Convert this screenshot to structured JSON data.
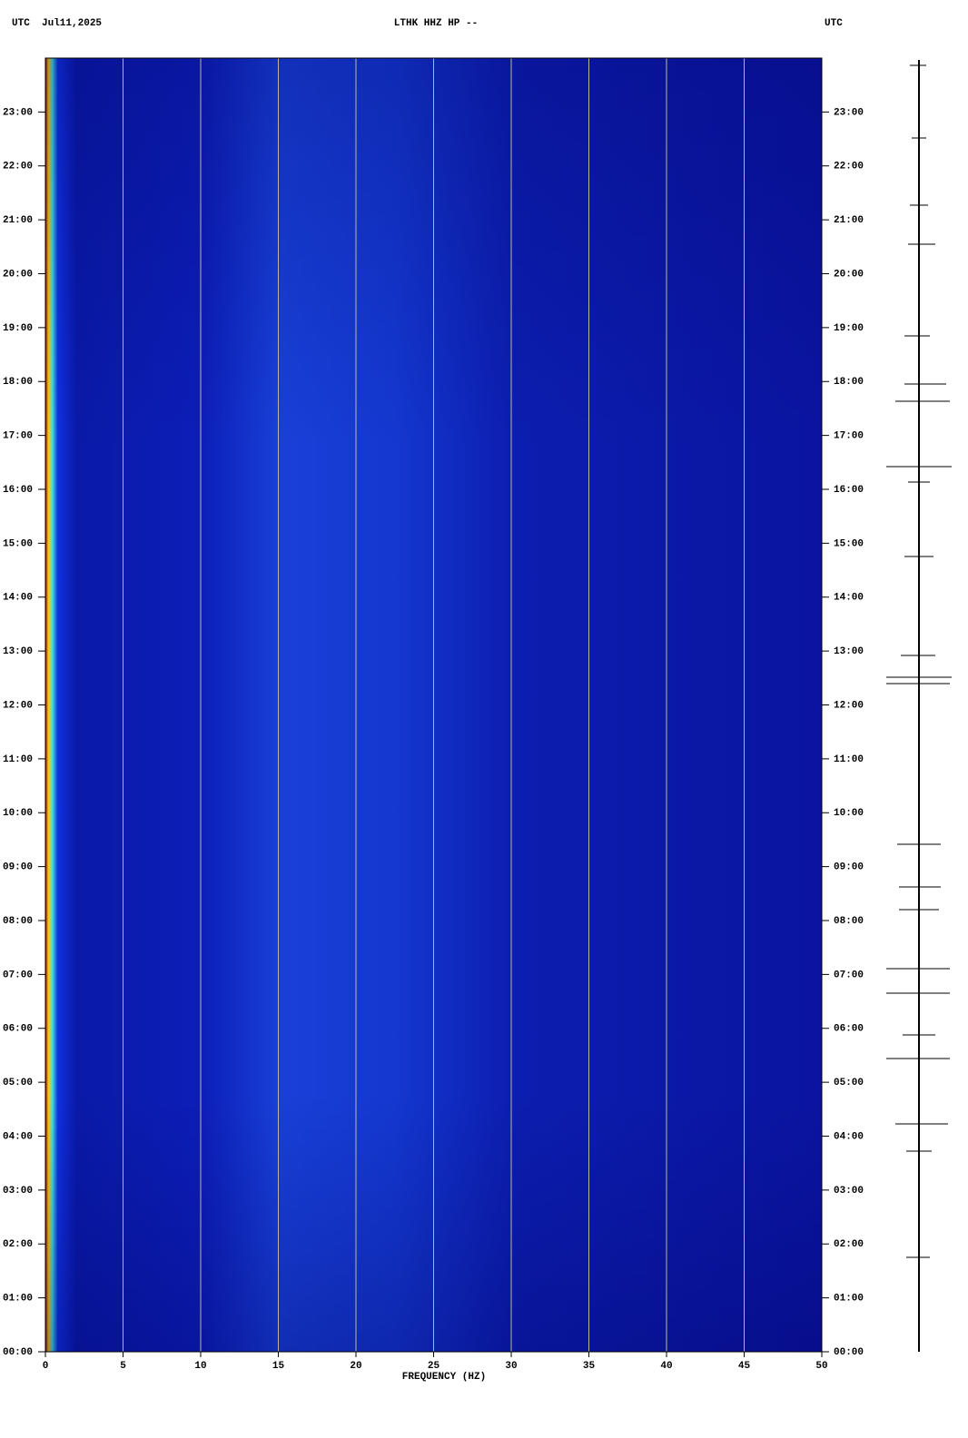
{
  "header": {
    "left": "UTC  Jul11,2025",
    "center": "LTHK HHZ HP --",
    "right": "UTC"
  },
  "chart_data": {
    "type": "spectrogram",
    "xlabel": "FREQUENCY (HZ)",
    "xlim": [
      0,
      50
    ],
    "xticks": [
      0,
      5,
      10,
      15,
      20,
      25,
      30,
      35,
      40,
      45,
      50
    ],
    "ylim": [
      0,
      24
    ],
    "yticks": [
      {
        "value": 0,
        "label": "00:00"
      },
      {
        "value": 1,
        "label": "01:00"
      },
      {
        "value": 2,
        "label": "02:00"
      },
      {
        "value": 3,
        "label": "03:00"
      },
      {
        "value": 4,
        "label": "04:00"
      },
      {
        "value": 5,
        "label": "05:00"
      },
      {
        "value": 6,
        "label": "06:00"
      },
      {
        "value": 7,
        "label": "07:00"
      },
      {
        "value": 8,
        "label": "08:00"
      },
      {
        "value": 9,
        "label": "09:00"
      },
      {
        "value": 10,
        "label": "10:00"
      },
      {
        "value": 11,
        "label": "11:00"
      },
      {
        "value": 12,
        "label": "12:00"
      },
      {
        "value": 13,
        "label": "13:00"
      },
      {
        "value": 14,
        "label": "14:00"
      },
      {
        "value": 15,
        "label": "15:00"
      },
      {
        "value": 16,
        "label": "16:00"
      },
      {
        "value": 17,
        "label": "17:00"
      },
      {
        "value": 18,
        "label": "18:00"
      },
      {
        "value": 19,
        "label": "19:00"
      },
      {
        "value": 20,
        "label": "20:00"
      },
      {
        "value": 21,
        "label": "21:00"
      },
      {
        "value": 22,
        "label": "22:00"
      },
      {
        "value": 23,
        "label": "23:00"
      }
    ],
    "xgrid": true,
    "grid_color": "#b8b8a0"
  }
}
